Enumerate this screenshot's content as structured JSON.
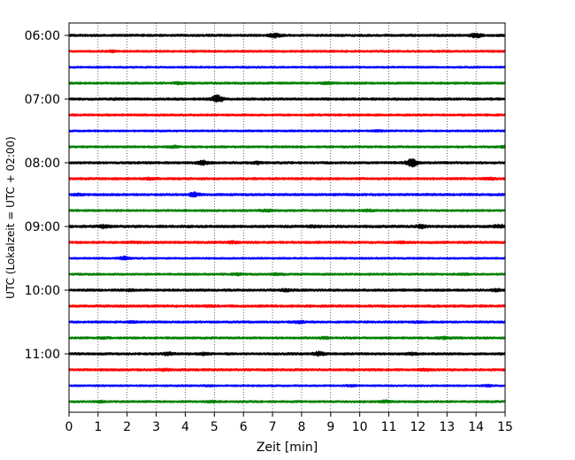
{
  "chart_data": {
    "type": "line",
    "title": "",
    "xlabel": "Zeit  [min]",
    "ylabel": "UTC (Lokalzeit = UTC + 02:00)",
    "xlim": [
      0,
      15
    ],
    "x_ticks": [
      0,
      1,
      2,
      3,
      4,
      5,
      6,
      7,
      8,
      9,
      10,
      11,
      12,
      13,
      14,
      15
    ],
    "x_tick_labels": [
      "0",
      "1",
      "2",
      "3",
      "4",
      "5",
      "6",
      "7",
      "8",
      "9",
      "10",
      "11",
      "12",
      "13",
      "14",
      "15"
    ],
    "y_tick_labels": [
      {
        "row": 0,
        "label": "06:00"
      },
      {
        "row": 4,
        "label": "07:00"
      },
      {
        "row": 8,
        "label": "08:00"
      },
      {
        "row": 12,
        "label": "09:00"
      },
      {
        "row": 16,
        "label": "10:00"
      },
      {
        "row": 20,
        "label": "11:00"
      }
    ],
    "trace_colors": [
      "#000000",
      "#ff0000",
      "#0000ff",
      "#008000"
    ],
    "vertical_grid": "dotted",
    "traces": [
      {
        "start_utc": "06:00",
        "amplitude": 0.55,
        "events": [
          [
            7.1,
            1.6
          ],
          [
            14.0,
            1.6
          ]
        ]
      },
      {
        "start_utc": "06:15",
        "amplitude": 0.5,
        "events": [
          [
            1.5,
            1.2
          ]
        ]
      },
      {
        "start_utc": "06:30",
        "amplitude": 0.45,
        "events": []
      },
      {
        "start_utc": "06:45",
        "amplitude": 0.5,
        "events": [
          [
            3.8,
            1.3
          ],
          [
            8.9,
            1.3
          ]
        ]
      },
      {
        "start_utc": "07:00",
        "amplitude": 0.55,
        "events": [
          [
            5.1,
            2.2
          ],
          [
            1.6,
            1.1
          ]
        ]
      },
      {
        "start_utc": "07:15",
        "amplitude": 0.5,
        "events": []
      },
      {
        "start_utc": "07:30",
        "amplitude": 0.45,
        "events": [
          [
            10.6,
            1.2
          ]
        ]
      },
      {
        "start_utc": "07:45",
        "amplitude": 0.5,
        "events": [
          [
            3.6,
            1.3
          ],
          [
            15.0,
            1.3
          ]
        ]
      },
      {
        "start_utc": "08:00",
        "amplitude": 0.55,
        "events": [
          [
            4.6,
            1.6
          ],
          [
            11.8,
            2.2
          ],
          [
            6.5,
            1.3
          ]
        ]
      },
      {
        "start_utc": "08:15",
        "amplitude": 0.55,
        "events": [
          [
            2.8,
            1.2
          ],
          [
            14.5,
            1.3
          ]
        ]
      },
      {
        "start_utc": "08:30",
        "amplitude": 0.55,
        "events": [
          [
            4.3,
            1.6
          ],
          [
            0.3,
            1.2
          ]
        ]
      },
      {
        "start_utc": "08:45",
        "amplitude": 0.5,
        "events": [
          [
            6.8,
            1.3
          ],
          [
            10.3,
            1.3
          ]
        ]
      },
      {
        "start_utc": "09:00",
        "amplitude": 0.6,
        "events": [
          [
            1.2,
            1.4
          ],
          [
            8.4,
            1.2
          ],
          [
            12.1,
            1.4
          ],
          [
            14.8,
            1.4
          ]
        ]
      },
      {
        "start_utc": "09:15",
        "amplitude": 0.55,
        "events": [
          [
            2.2,
            1.2
          ],
          [
            5.6,
            1.3
          ],
          [
            11.4,
            1.2
          ]
        ]
      },
      {
        "start_utc": "09:30",
        "amplitude": 0.45,
        "events": [
          [
            1.9,
            1.7
          ]
        ]
      },
      {
        "start_utc": "09:45",
        "amplitude": 0.5,
        "events": [
          [
            5.8,
            1.3
          ],
          [
            7.2,
            1.3
          ],
          [
            13.6,
            1.2
          ]
        ]
      },
      {
        "start_utc": "10:00",
        "amplitude": 0.55,
        "events": [
          [
            2.1,
            1.2
          ],
          [
            7.5,
            1.3
          ],
          [
            14.7,
            1.3
          ]
        ]
      },
      {
        "start_utc": "10:15",
        "amplitude": 0.55,
        "events": [
          [
            4.8,
            1.2
          ]
        ]
      },
      {
        "start_utc": "10:30",
        "amplitude": 0.5,
        "events": [
          [
            2.2,
            1.2
          ],
          [
            7.9,
            1.3
          ],
          [
            12.0,
            1.2
          ]
        ]
      },
      {
        "start_utc": "10:45",
        "amplitude": 0.5,
        "events": [
          [
            1.2,
            1.2
          ],
          [
            8.8,
            1.3
          ],
          [
            12.9,
            1.4
          ]
        ]
      },
      {
        "start_utc": "11:00",
        "amplitude": 0.55,
        "events": [
          [
            3.4,
            1.4
          ],
          [
            4.6,
            1.3
          ],
          [
            8.6,
            1.6
          ],
          [
            11.8,
            1.3
          ]
        ]
      },
      {
        "start_utc": "11:15",
        "amplitude": 0.55,
        "events": [
          [
            3.3,
            1.3
          ],
          [
            12.3,
            1.2
          ]
        ]
      },
      {
        "start_utc": "11:30",
        "amplitude": 0.45,
        "events": [
          [
            4.8,
            1.2
          ],
          [
            9.7,
            1.2
          ],
          [
            14.4,
            1.3
          ]
        ]
      },
      {
        "start_utc": "11:45",
        "amplitude": 0.5,
        "events": [
          [
            1.1,
            1.2
          ],
          [
            4.9,
            1.2
          ],
          [
            10.9,
            1.3
          ]
        ]
      }
    ]
  }
}
